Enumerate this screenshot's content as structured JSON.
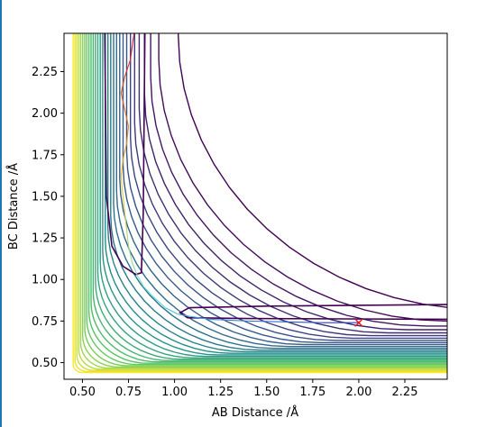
{
  "chart_data": {
    "type": "contour",
    "xlabel": "AB Distance /Å",
    "ylabel": "BC Distance /Å",
    "xlim": [
      0.4,
      2.48
    ],
    "ylim": [
      0.4,
      2.48
    ],
    "xticks": [
      {
        "value": 0.5,
        "label": "0.50"
      },
      {
        "value": 0.75,
        "label": "0.75"
      },
      {
        "value": 1.0,
        "label": "1.00"
      },
      {
        "value": 1.25,
        "label": "1.25"
      },
      {
        "value": 1.5,
        "label": "1.50"
      },
      {
        "value": 1.75,
        "label": "1.75"
      },
      {
        "value": 2.0,
        "label": "2.00"
      },
      {
        "value": 2.25,
        "label": "2.25"
      }
    ],
    "yticks": [
      {
        "value": 0.5,
        "label": "0.50"
      },
      {
        "value": 0.75,
        "label": "0.75"
      },
      {
        "value": 1.0,
        "label": "1.00"
      },
      {
        "value": 1.25,
        "label": "1.25"
      },
      {
        "value": 1.5,
        "label": "1.50"
      },
      {
        "value": 1.75,
        "label": "1.75"
      },
      {
        "value": 2.0,
        "label": "2.00"
      },
      {
        "value": 2.25,
        "label": "2.25"
      }
    ],
    "grid": false,
    "colormap": [
      "#440154",
      "#3b528b",
      "#21918c",
      "#5ec962",
      "#fde725"
    ],
    "start_marker": {
      "x": 2.0,
      "y": 0.74,
      "symbol": "x",
      "color": "#e41a1c"
    },
    "trajectory": {
      "color_start": "#1f3fd0",
      "color_end": "#d62728",
      "points": [
        [
          2.0,
          0.74
        ],
        [
          1.8,
          0.74
        ],
        [
          1.6,
          0.745
        ],
        [
          1.4,
          0.75
        ],
        [
          1.2,
          0.76
        ],
        [
          1.1,
          0.775
        ],
        [
          1.02,
          0.79
        ],
        [
          0.95,
          0.83
        ],
        [
          0.88,
          0.9
        ],
        [
          0.83,
          0.96
        ],
        [
          0.8,
          1.02
        ],
        [
          0.77,
          1.1
        ],
        [
          0.75,
          1.2
        ],
        [
          0.74,
          1.3
        ],
        [
          0.73,
          1.4
        ],
        [
          0.72,
          1.5
        ],
        [
          0.71,
          1.62
        ],
        [
          0.72,
          1.72
        ],
        [
          0.74,
          1.82
        ],
        [
          0.75,
          1.92
        ],
        [
          0.73,
          2.02
        ],
        [
          0.71,
          2.12
        ],
        [
          0.73,
          2.22
        ],
        [
          0.76,
          2.32
        ],
        [
          0.78,
          2.48
        ]
      ]
    }
  }
}
